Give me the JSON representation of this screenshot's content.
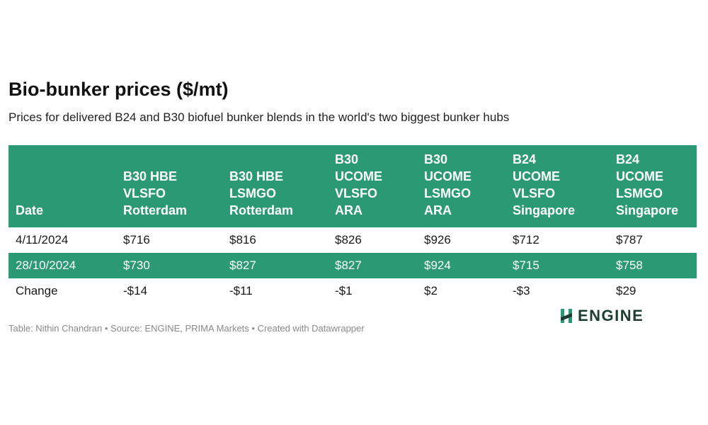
{
  "header": {
    "title": "Bio-bunker prices ($/mt)",
    "subtitle": "Prices for delivered B24 and B30 biofuel bunker blends in the world's two biggest bunker hubs"
  },
  "colors": {
    "accent": "#2b9a74",
    "logo_text": "#1c3d2f",
    "footer_text": "#8a8a8a"
  },
  "chart_data": {
    "type": "table",
    "title": "Bio-bunker prices ($/mt)",
    "subtitle": "Prices for delivered B24 and B30 biofuel bunker blends in the world's two biggest bunker hubs",
    "columns": [
      {
        "lines": [
          "Date"
        ]
      },
      {
        "lines": [
          "B30 HBE",
          "VLSFO",
          "Rotterdam"
        ]
      },
      {
        "lines": [
          "B30 HBE",
          "LSMGO",
          "Rotterdam"
        ]
      },
      {
        "lines": [
          "B30",
          "UCOME",
          "VLSFO",
          "ARA"
        ]
      },
      {
        "lines": [
          "B30",
          "UCOME",
          "LSMGO",
          "ARA"
        ]
      },
      {
        "lines": [
          "B24",
          "UCOME",
          "VLSFO",
          "Singapore"
        ]
      },
      {
        "lines": [
          "B24",
          "UCOME",
          "LSMGO",
          "Singapore"
        ]
      }
    ],
    "rows": [
      {
        "cells": [
          "4/11/2024",
          "$716",
          "$816",
          "$826",
          "$926",
          "$712",
          "$787"
        ],
        "highlight": false
      },
      {
        "cells": [
          "28/10/2024",
          "$730",
          "$827",
          "$827",
          "$924",
          "$715",
          "$758"
        ],
        "highlight": true
      },
      {
        "cells": [
          "Change",
          "-$14",
          "-$11",
          "-$1",
          "$2",
          "-$3",
          "$29"
        ],
        "highlight": false
      }
    ]
  },
  "footer": {
    "credit": "Table: Nithin Chandran • Source: ENGINE, PRIMA Markets • Created with Datawrapper"
  },
  "logo": {
    "text": "ENGINE",
    "icon": "engine-logo-icon"
  }
}
